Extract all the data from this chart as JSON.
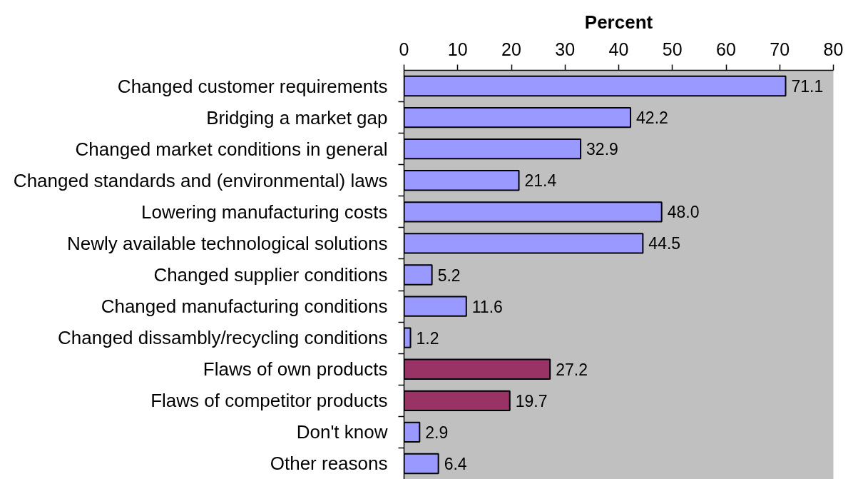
{
  "chart_data": {
    "type": "bar",
    "orientation": "horizontal",
    "xlabel": "Percent",
    "categories": [
      "Changed customer requirements",
      "Bridging a market gap",
      "Changed market conditions in general",
      "Changed standards and (environmental) laws",
      "Lowering manufacturing costs",
      "Newly available technological solutions",
      "Changed supplier conditions",
      "Changed manufacturing conditions",
      "Changed dissambly/recycling conditions",
      "Flaws of own products",
      "Flaws of competitor products",
      "Don't know",
      "Other reasons"
    ],
    "values": [
      71.1,
      42.2,
      32.9,
      21.4,
      48.0,
      44.5,
      5.2,
      11.6,
      1.2,
      27.2,
      19.7,
      2.9,
      6.4
    ],
    "value_labels": [
      "71.1",
      "42.2",
      "32.9",
      "21.4",
      "48.0",
      "44.5",
      "5.2",
      "11.6",
      "1.2",
      "27.2",
      "19.7",
      "2.9",
      "6.4"
    ],
    "colors": [
      "#9999ff",
      "#9999ff",
      "#9999ff",
      "#9999ff",
      "#9999ff",
      "#9999ff",
      "#9999ff",
      "#9999ff",
      "#9999ff",
      "#993366",
      "#993366",
      "#9999ff",
      "#9999ff"
    ],
    "xlim": [
      0,
      80
    ],
    "xticks": [
      0,
      10,
      20,
      30,
      40,
      50,
      60,
      70,
      80
    ]
  }
}
